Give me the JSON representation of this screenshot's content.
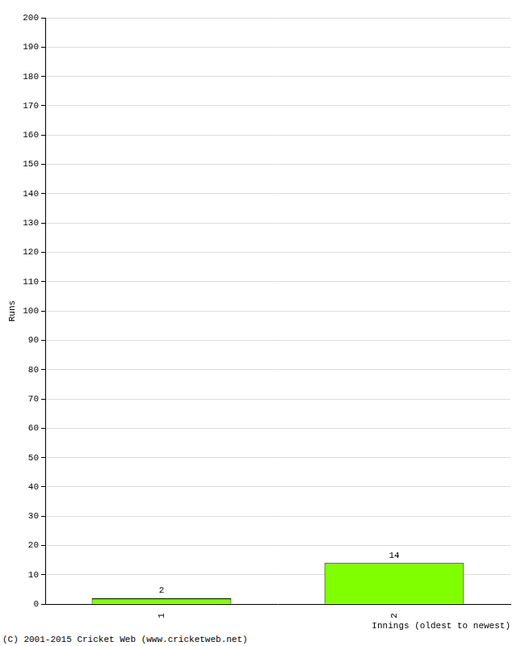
{
  "chart_data": {
    "type": "bar",
    "x_label": "Innings (oldest to newest)",
    "y_label": "Runs",
    "categories": [
      "1",
      "2"
    ],
    "values": [
      2,
      14
    ],
    "color": "#80ff00",
    "ylim": [
      0,
      200
    ],
    "yticks": [
      0,
      10,
      20,
      30,
      40,
      50,
      60,
      70,
      80,
      90,
      100,
      110,
      120,
      130,
      140,
      150,
      160,
      170,
      180,
      190,
      200
    ],
    "grid": true,
    "data_labels": true,
    "annotations": [
      "(C) 2001-2015 Cricket Web (www.cricketweb.net)"
    ]
  }
}
